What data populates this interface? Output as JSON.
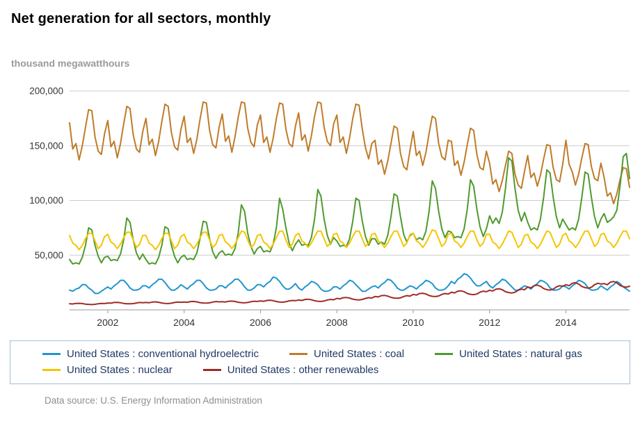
{
  "title": "Net generation for all sectors, monthly",
  "y_axis_title": "thousand megawatthours",
  "footer": "Data source: U.S. Energy Information Administration",
  "chart_data": {
    "type": "line",
    "x_range": "2001-01 to 2015-09 (monthly)",
    "x_start": {
      "year": 2001,
      "month": 1
    },
    "x_end": {
      "year": 2015,
      "month": 9
    },
    "x_tick_years": [
      2002,
      2004,
      2006,
      2008,
      2010,
      2012,
      2014
    ],
    "ylim": [
      0,
      200000
    ],
    "y_ticks": [
      50000,
      100000,
      150000,
      200000
    ],
    "y_tick_labels": [
      "50,000",
      "100,000",
      "150,000",
      "200,000"
    ],
    "grid": true,
    "legend_position": "bottom",
    "series": [
      {
        "name": "United States : conventional hydroelectric",
        "color": "#2095cf",
        "values": [
          18000,
          17000,
          19000,
          20000,
          23000,
          23000,
          20000,
          18000,
          15000,
          15000,
          17000,
          19000,
          21000,
          19000,
          22000,
          24000,
          27000,
          27000,
          24000,
          20000,
          18000,
          18000,
          19000,
          22000,
          22000,
          20000,
          23000,
          25000,
          28000,
          28000,
          25000,
          21000,
          18000,
          18000,
          20000,
          23000,
          21000,
          19000,
          22000,
          24000,
          27000,
          27000,
          24000,
          20000,
          18000,
          18000,
          19000,
          22000,
          22000,
          20000,
          23000,
          25000,
          28000,
          28000,
          25000,
          21000,
          18000,
          18000,
          20000,
          23000,
          23000,
          21000,
          24000,
          26000,
          30000,
          29000,
          26000,
          22000,
          19000,
          19000,
          21000,
          24000,
          20000,
          18000,
          21000,
          23000,
          26000,
          25000,
          23000,
          19000,
          17000,
          17000,
          18000,
          21000,
          21000,
          19000,
          22000,
          24000,
          27000,
          26000,
          23000,
          20000,
          17000,
          17000,
          19000,
          21000,
          22000,
          20000,
          23000,
          25000,
          28000,
          27000,
          24000,
          20000,
          18000,
          18000,
          20000,
          22000,
          21000,
          19000,
          22000,
          24000,
          27000,
          26000,
          24000,
          20000,
          18000,
          18000,
          19000,
          22000,
          26000,
          24000,
          28000,
          30000,
          33000,
          32000,
          29000,
          25000,
          22000,
          22000,
          24000,
          26000,
          22000,
          20000,
          23000,
          25000,
          28000,
          27000,
          24000,
          21000,
          18000,
          18000,
          20000,
          22000,
          21000,
          19000,
          22000,
          24000,
          27000,
          26000,
          24000,
          20000,
          18000,
          18000,
          19000,
          22000,
          21000,
          19000,
          22000,
          24000,
          27000,
          26000,
          24000,
          20000,
          18000,
          18000,
          19000,
          22000,
          20000,
          18000,
          21000,
          23000,
          26000,
          24000,
          21000,
          19000,
          17000
        ]
      },
      {
        "name": "United States : coal",
        "color": "#bf7b29",
        "values": [
          171000,
          147000,
          152000,
          137000,
          150000,
          167000,
          183000,
          182000,
          158000,
          145000,
          142000,
          161000,
          173000,
          149000,
          154000,
          139000,
          152000,
          170000,
          186000,
          184000,
          160000,
          147000,
          144000,
          163000,
          175000,
          151000,
          156000,
          141000,
          154000,
          172000,
          188000,
          186000,
          162000,
          149000,
          146000,
          165000,
          177000,
          153000,
          157000,
          143000,
          156000,
          174000,
          190000,
          189000,
          164000,
          151000,
          148000,
          167000,
          179000,
          154000,
          159000,
          144000,
          158000,
          176000,
          190000,
          189000,
          166000,
          153000,
          149000,
          169000,
          178000,
          153000,
          158000,
          144000,
          157000,
          175000,
          189000,
          188000,
          165000,
          152000,
          149000,
          168000,
          180000,
          155000,
          160000,
          145000,
          159000,
          177000,
          190000,
          189000,
          167000,
          154000,
          150000,
          170000,
          178000,
          153000,
          158000,
          143000,
          157000,
          175000,
          188000,
          187000,
          165000,
          148000,
          138000,
          152000,
          155000,
          133000,
          137000,
          124000,
          136000,
          152000,
          168000,
          166000,
          143000,
          131000,
          128000,
          146000,
          163000,
          141000,
          145000,
          132000,
          144000,
          161000,
          177000,
          175000,
          152000,
          140000,
          137000,
          155000,
          154000,
          132000,
          136000,
          123000,
          135000,
          151000,
          166000,
          164000,
          142000,
          130000,
          128000,
          145000,
          134000,
          115000,
          119000,
          108000,
          118000,
          132000,
          145000,
          143000,
          124000,
          114000,
          111000,
          127000,
          141000,
          121000,
          125000,
          113000,
          123000,
          138000,
          151000,
          150000,
          130000,
          119000,
          117000,
          133000,
          155000,
          133000,
          126000,
          114000,
          124000,
          139000,
          152000,
          151000,
          131000,
          120000,
          118000,
          134000,
          121000,
          104000,
          107000,
          97000,
          106000,
          119000,
          130000,
          129000,
          112000
        ]
      },
      {
        "name": "United States : natural gas",
        "color": "#4e9a2e",
        "values": [
          46000,
          42000,
          43000,
          42000,
          48000,
          59000,
          75000,
          73000,
          59000,
          49000,
          43000,
          48000,
          49000,
          45000,
          46000,
          45000,
          51000,
          64000,
          84000,
          80000,
          64000,
          52000,
          46000,
          51000,
          46000,
          42000,
          43000,
          42000,
          48000,
          59000,
          76000,
          74000,
          59000,
          49000,
          43000,
          48000,
          50000,
          46000,
          47000,
          46000,
          52000,
          65000,
          81000,
          80000,
          65000,
          53000,
          47000,
          52000,
          54000,
          50000,
          51000,
          50000,
          56000,
          70000,
          96000,
          90000,
          70000,
          58000,
          51000,
          56000,
          58000,
          53000,
          54000,
          53000,
          60000,
          75000,
          102000,
          92000,
          75000,
          61000,
          54000,
          60000,
          64000,
          59000,
          60000,
          59000,
          66000,
          83000,
          110000,
          104000,
          83000,
          68000,
          60000,
          66000,
          63000,
          58000,
          59000,
          58000,
          65000,
          81000,
          102000,
          100000,
          81000,
          67000,
          59000,
          65000,
          65000,
          60000,
          62000,
          60000,
          68000,
          85000,
          106000,
          104000,
          85000,
          69000,
          62000,
          68000,
          70000,
          64000,
          66000,
          64000,
          72000,
          90000,
          118000,
          111000,
          90000,
          74000,
          66000,
          72000,
          71000,
          66000,
          67000,
          66000,
          74000,
          92000,
          119000,
          113000,
          92000,
          76000,
          67000,
          74000,
          86000,
          79000,
          84000,
          79000,
          89000,
          111000,
          139000,
          136000,
          111000,
          91000,
          81000,
          89000,
          80000,
          73000,
          75000,
          73000,
          83000,
          103000,
          128000,
          125000,
          103000,
          85000,
          75000,
          83000,
          78000,
          73000,
          75000,
          73000,
          83000,
          103000,
          126000,
          124000,
          103000,
          85000,
          75000,
          83000,
          88000,
          80000,
          82000,
          85000,
          91000,
          113000,
          140000,
          143000,
          120000
        ]
      },
      {
        "name": "United States : nuclear",
        "color": "#f5c500",
        "values": [
          68000,
          61000,
          59000,
          55000,
          59000,
          65000,
          70000,
          70000,
          63000,
          56000,
          59000,
          67000,
          69000,
          62000,
          60000,
          56000,
          60000,
          66000,
          71000,
          71000,
          64000,
          57000,
          60000,
          68000,
          68000,
          61000,
          59000,
          55000,
          59000,
          65000,
          70000,
          70000,
          63000,
          56000,
          59000,
          67000,
          69000,
          62000,
          60000,
          56000,
          60000,
          66000,
          71000,
          71000,
          64000,
          57000,
          60000,
          68000,
          69000,
          62000,
          60000,
          56000,
          60000,
          66000,
          72000,
          71000,
          64000,
          57000,
          60000,
          68000,
          69000,
          62000,
          60000,
          56000,
          60000,
          66000,
          72000,
          72000,
          64000,
          57000,
          60000,
          68000,
          70000,
          63000,
          61000,
          57000,
          61000,
          67000,
          72000,
          72000,
          65000,
          58000,
          61000,
          69000,
          70000,
          63000,
          61000,
          57000,
          61000,
          67000,
          72000,
          72000,
          65000,
          58000,
          61000,
          69000,
          70000,
          63000,
          61000,
          57000,
          61000,
          67000,
          72000,
          72000,
          65000,
          58000,
          61000,
          69000,
          70000,
          63000,
          61000,
          57000,
          61000,
          67000,
          73000,
          72000,
          65000,
          58000,
          61000,
          69000,
          70000,
          63000,
          61000,
          57000,
          61000,
          67000,
          72000,
          72000,
          64000,
          58000,
          61000,
          69000,
          69000,
          62000,
          60000,
          56000,
          60000,
          66000,
          72000,
          71000,
          64000,
          57000,
          60000,
          68000,
          69000,
          62000,
          60000,
          56000,
          60000,
          66000,
          72000,
          71000,
          64000,
          57000,
          60000,
          68000,
          70000,
          63000,
          61000,
          57000,
          61000,
          67000,
          72000,
          72000,
          65000,
          58000,
          61000,
          69000,
          70000,
          63000,
          61000,
          57000,
          61000,
          67000,
          72000,
          72000,
          65000
        ]
      },
      {
        "name": "United States : other renewables",
        "color": "#9e2b25",
        "values": [
          5600,
          5400,
          5900,
          6000,
          5800,
          5200,
          5000,
          4800,
          5100,
          5600,
          5900,
          5800,
          6300,
          6100,
          6700,
          6800,
          6500,
          5900,
          5600,
          5500,
          5700,
          6300,
          6700,
          6500,
          6700,
          6500,
          7100,
          7300,
          6900,
          6300,
          5900,
          5800,
          6100,
          6700,
          7100,
          6900,
          7100,
          6900,
          7600,
          7700,
          7300,
          6600,
          6300,
          6200,
          6400,
          7100,
          7600,
          7300,
          7400,
          7200,
          7900,
          8000,
          7700,
          6900,
          6600,
          6400,
          6700,
          7400,
          7900,
          7700,
          8200,
          7800,
          8600,
          8800,
          8400,
          7600,
          7200,
          7000,
          7400,
          8200,
          8600,
          8400,
          9000,
          8600,
          9500,
          9700,
          9200,
          8400,
          7900,
          7700,
          8100,
          9000,
          9500,
          9200,
          10500,
          10100,
          11100,
          11300,
          10800,
          9800,
          9300,
          9100,
          9500,
          10500,
          11100,
          10800,
          12200,
          11800,
          13000,
          13200,
          12600,
          11400,
          10800,
          10600,
          11000,
          12200,
          13000,
          12600,
          14100,
          13500,
          14900,
          15200,
          14500,
          13100,
          12400,
          12100,
          12700,
          14100,
          14900,
          14500,
          16100,
          15500,
          17100,
          17400,
          16600,
          15000,
          14200,
          13900,
          14500,
          16100,
          17100,
          16600,
          17900,
          17200,
          18900,
          19300,
          18400,
          16600,
          15800,
          15400,
          16100,
          17900,
          18900,
          18400,
          20900,
          20100,
          22100,
          22600,
          21500,
          19500,
          18500,
          18000,
          18900,
          20900,
          22100,
          21500,
          23000,
          22100,
          24300,
          24800,
          23600,
          21400,
          20300,
          19800,
          20700,
          23000,
          24300,
          23600,
          24000,
          23000,
          25400,
          25900,
          24700,
          22300,
          21200,
          20700,
          21600
        ]
      }
    ]
  },
  "legend": {
    "row1": [
      "United States : conventional hydroelectric",
      "United States : coal",
      "United States : natural gas"
    ],
    "row2": [
      "United States : nuclear",
      "United States : other renewables"
    ]
  }
}
